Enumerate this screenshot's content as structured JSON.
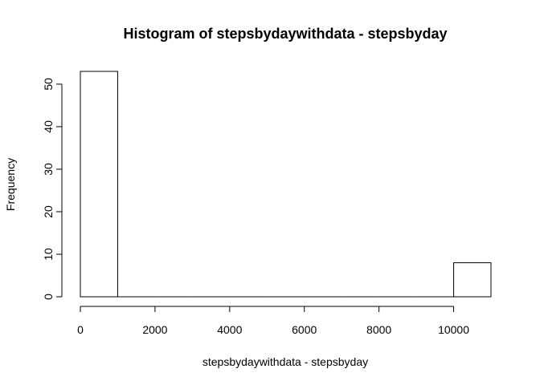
{
  "chart_data": {
    "type": "bar",
    "title": "Histogram of stepsbydaywithdata - stepsbyday",
    "xlabel": "stepsbydaywithdata - stepsbyday",
    "ylabel": "Frequency",
    "xlim": [
      0,
      11000
    ],
    "ylim": [
      0,
      53
    ],
    "x_ticks": [
      0,
      2000,
      4000,
      6000,
      8000,
      10000
    ],
    "x_tick_labels": [
      "0",
      "2000",
      "4000",
      "6000",
      "8000",
      "10000"
    ],
    "y_ticks": [
      0,
      10,
      20,
      30,
      40,
      50
    ],
    "y_tick_labels": [
      "0",
      "10",
      "20",
      "30",
      "40",
      "50"
    ],
    "bins": [
      {
        "start": 0,
        "end": 1000,
        "count": 53
      },
      {
        "start": 1000,
        "end": 2000,
        "count": 0
      },
      {
        "start": 2000,
        "end": 3000,
        "count": 0
      },
      {
        "start": 3000,
        "end": 4000,
        "count": 0
      },
      {
        "start": 4000,
        "end": 5000,
        "count": 0
      },
      {
        "start": 5000,
        "end": 6000,
        "count": 0
      },
      {
        "start": 6000,
        "end": 7000,
        "count": 0
      },
      {
        "start": 7000,
        "end": 8000,
        "count": 0
      },
      {
        "start": 8000,
        "end": 9000,
        "count": 0
      },
      {
        "start": 9000,
        "end": 10000,
        "count": 0
      },
      {
        "start": 10000,
        "end": 11000,
        "count": 8
      }
    ],
    "bar_fill": "#ffffff",
    "bar_stroke": "#000000",
    "grid": false
  }
}
